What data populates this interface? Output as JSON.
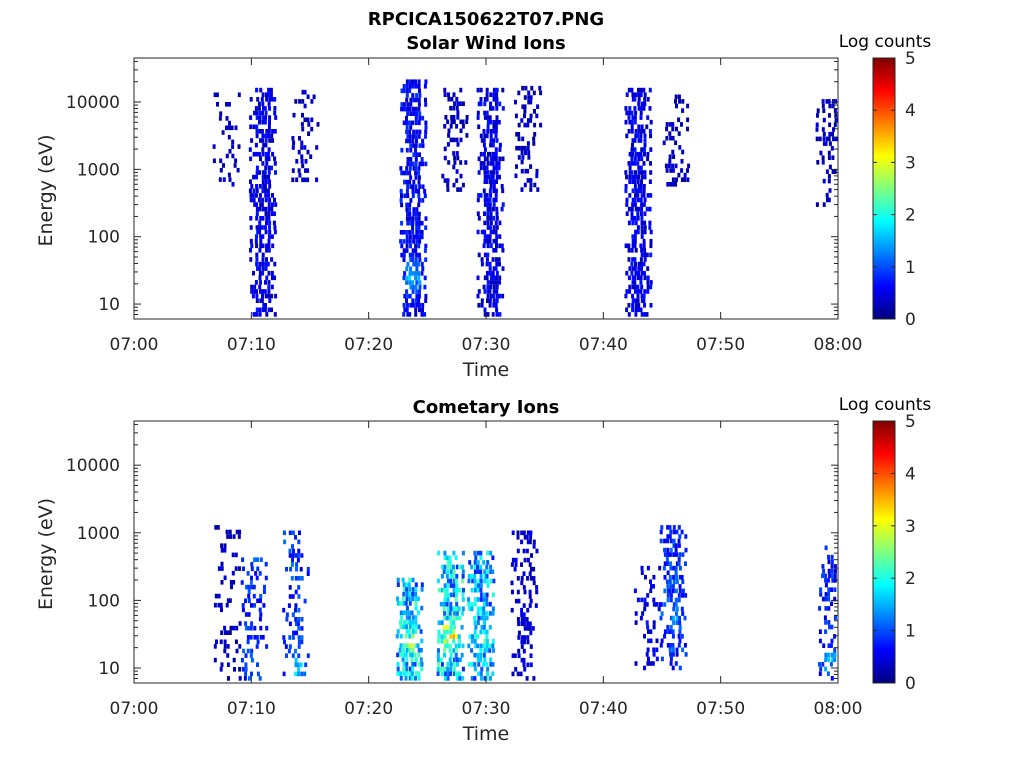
{
  "figure_title": "RPCICA150622T07.PNG",
  "colorscale": [
    "#00007f",
    "#0000ff",
    "#007fff",
    "#00ffff",
    "#7fff7f",
    "#ffff00",
    "#ff7f00",
    "#ff0000",
    "#7f0000"
  ],
  "chart_data": [
    {
      "type": "heatmap",
      "title": "Solar Wind Ions",
      "xlabel": "Time",
      "ylabel": "Energy (eV)",
      "xlim": [
        "07:00",
        "08:00"
      ],
      "xticks": [
        "07:00",
        "07:10",
        "07:20",
        "07:30",
        "07:40",
        "07:50",
        "08:00"
      ],
      "ylim": [
        6,
        45000
      ],
      "yscale": "log",
      "yticks": [
        "10",
        "100",
        "1000",
        "10000"
      ],
      "colorbar": {
        "label": "Log counts",
        "range": [
          0,
          5
        ],
        "ticks": [
          "0",
          "1",
          "2",
          "3",
          "4",
          "5"
        ]
      },
      "bursts": [
        {
          "t": 7.9,
          "e_lo": 600,
          "e_hi": 15000,
          "density": 0.3,
          "level": 0.3
        },
        {
          "t": 11.0,
          "e_lo": 6,
          "e_hi": 15000,
          "density": 0.75,
          "level": 0.5
        },
        {
          "t": 14.6,
          "e_lo": 700,
          "e_hi": 14000,
          "density": 0.35,
          "level": 0.3
        },
        {
          "t": 23.8,
          "e_lo": 6,
          "e_hi": 20000,
          "density": 0.8,
          "level": 0.6,
          "peak_e": 25,
          "peak_level": 1.7
        },
        {
          "t": 27.3,
          "e_lo": 500,
          "e_hi": 15000,
          "density": 0.35,
          "level": 0.3
        },
        {
          "t": 30.4,
          "e_lo": 6,
          "e_hi": 15000,
          "density": 0.75,
          "level": 0.5
        },
        {
          "t": 33.6,
          "e_lo": 500,
          "e_hi": 16000,
          "density": 0.35,
          "level": 0.3
        },
        {
          "t": 43.0,
          "e_lo": 6,
          "e_hi": 15000,
          "density": 0.75,
          "level": 0.5
        },
        {
          "t": 46.2,
          "e_lo": 600,
          "e_hi": 14000,
          "density": 0.35,
          "level": 0.3
        },
        {
          "t": 59.3,
          "e_lo": 300,
          "e_hi": 12000,
          "density": 0.3,
          "level": 0.3
        }
      ]
    },
    {
      "type": "heatmap",
      "title": "Cometary Ions",
      "xlabel": "Time",
      "ylabel": "Energy (eV)",
      "xlim": [
        "07:00",
        "08:00"
      ],
      "xticks": [
        "07:00",
        "07:10",
        "07:20",
        "07:30",
        "07:40",
        "07:50",
        "08:00"
      ],
      "ylim": [
        6,
        45000
      ],
      "yscale": "log",
      "yticks": [
        "10",
        "100",
        "1000",
        "10000"
      ],
      "colorbar": {
        "label": "Log counts",
        "range": [
          0,
          5
        ],
        "ticks": [
          "0",
          "1",
          "2",
          "3",
          "4",
          "5"
        ]
      },
      "bursts": [
        {
          "t": 8.0,
          "e_lo": 6,
          "e_hi": 1200,
          "density": 0.3,
          "level": 0.3
        },
        {
          "t": 10.3,
          "e_lo": 6,
          "e_hi": 400,
          "density": 0.35,
          "level": 0.8,
          "peak_e": 10,
          "peak_level": 1.7
        },
        {
          "t": 13.8,
          "e_lo": 6,
          "e_hi": 1000,
          "density": 0.4,
          "level": 0.8,
          "peak_e": 10,
          "peak_level": 2.0
        },
        {
          "t": 23.5,
          "e_lo": 6,
          "e_hi": 200,
          "density": 0.8,
          "level": 1.5,
          "peak_e": 25,
          "peak_level": 3.0
        },
        {
          "t": 27.0,
          "e_lo": 6,
          "e_hi": 500,
          "density": 0.8,
          "level": 1.6,
          "peak_e": 30,
          "peak_level": 3.6
        },
        {
          "t": 29.6,
          "e_lo": 6,
          "e_hi": 500,
          "density": 0.75,
          "level": 1.4,
          "peak_e": 25,
          "peak_level": 2.3
        },
        {
          "t": 33.3,
          "e_lo": 6,
          "e_hi": 1000,
          "density": 0.4,
          "level": 0.4
        },
        {
          "t": 43.8,
          "e_lo": 10,
          "e_hi": 300,
          "density": 0.35,
          "level": 0.5
        },
        {
          "t": 46.0,
          "e_lo": 10,
          "e_hi": 1200,
          "density": 0.55,
          "level": 0.8,
          "peak_e": 60,
          "peak_level": 1.6
        },
        {
          "t": 59.5,
          "e_lo": 6,
          "e_hi": 600,
          "density": 0.45,
          "level": 0.7,
          "peak_e": 12,
          "peak_level": 1.7
        }
      ]
    }
  ]
}
